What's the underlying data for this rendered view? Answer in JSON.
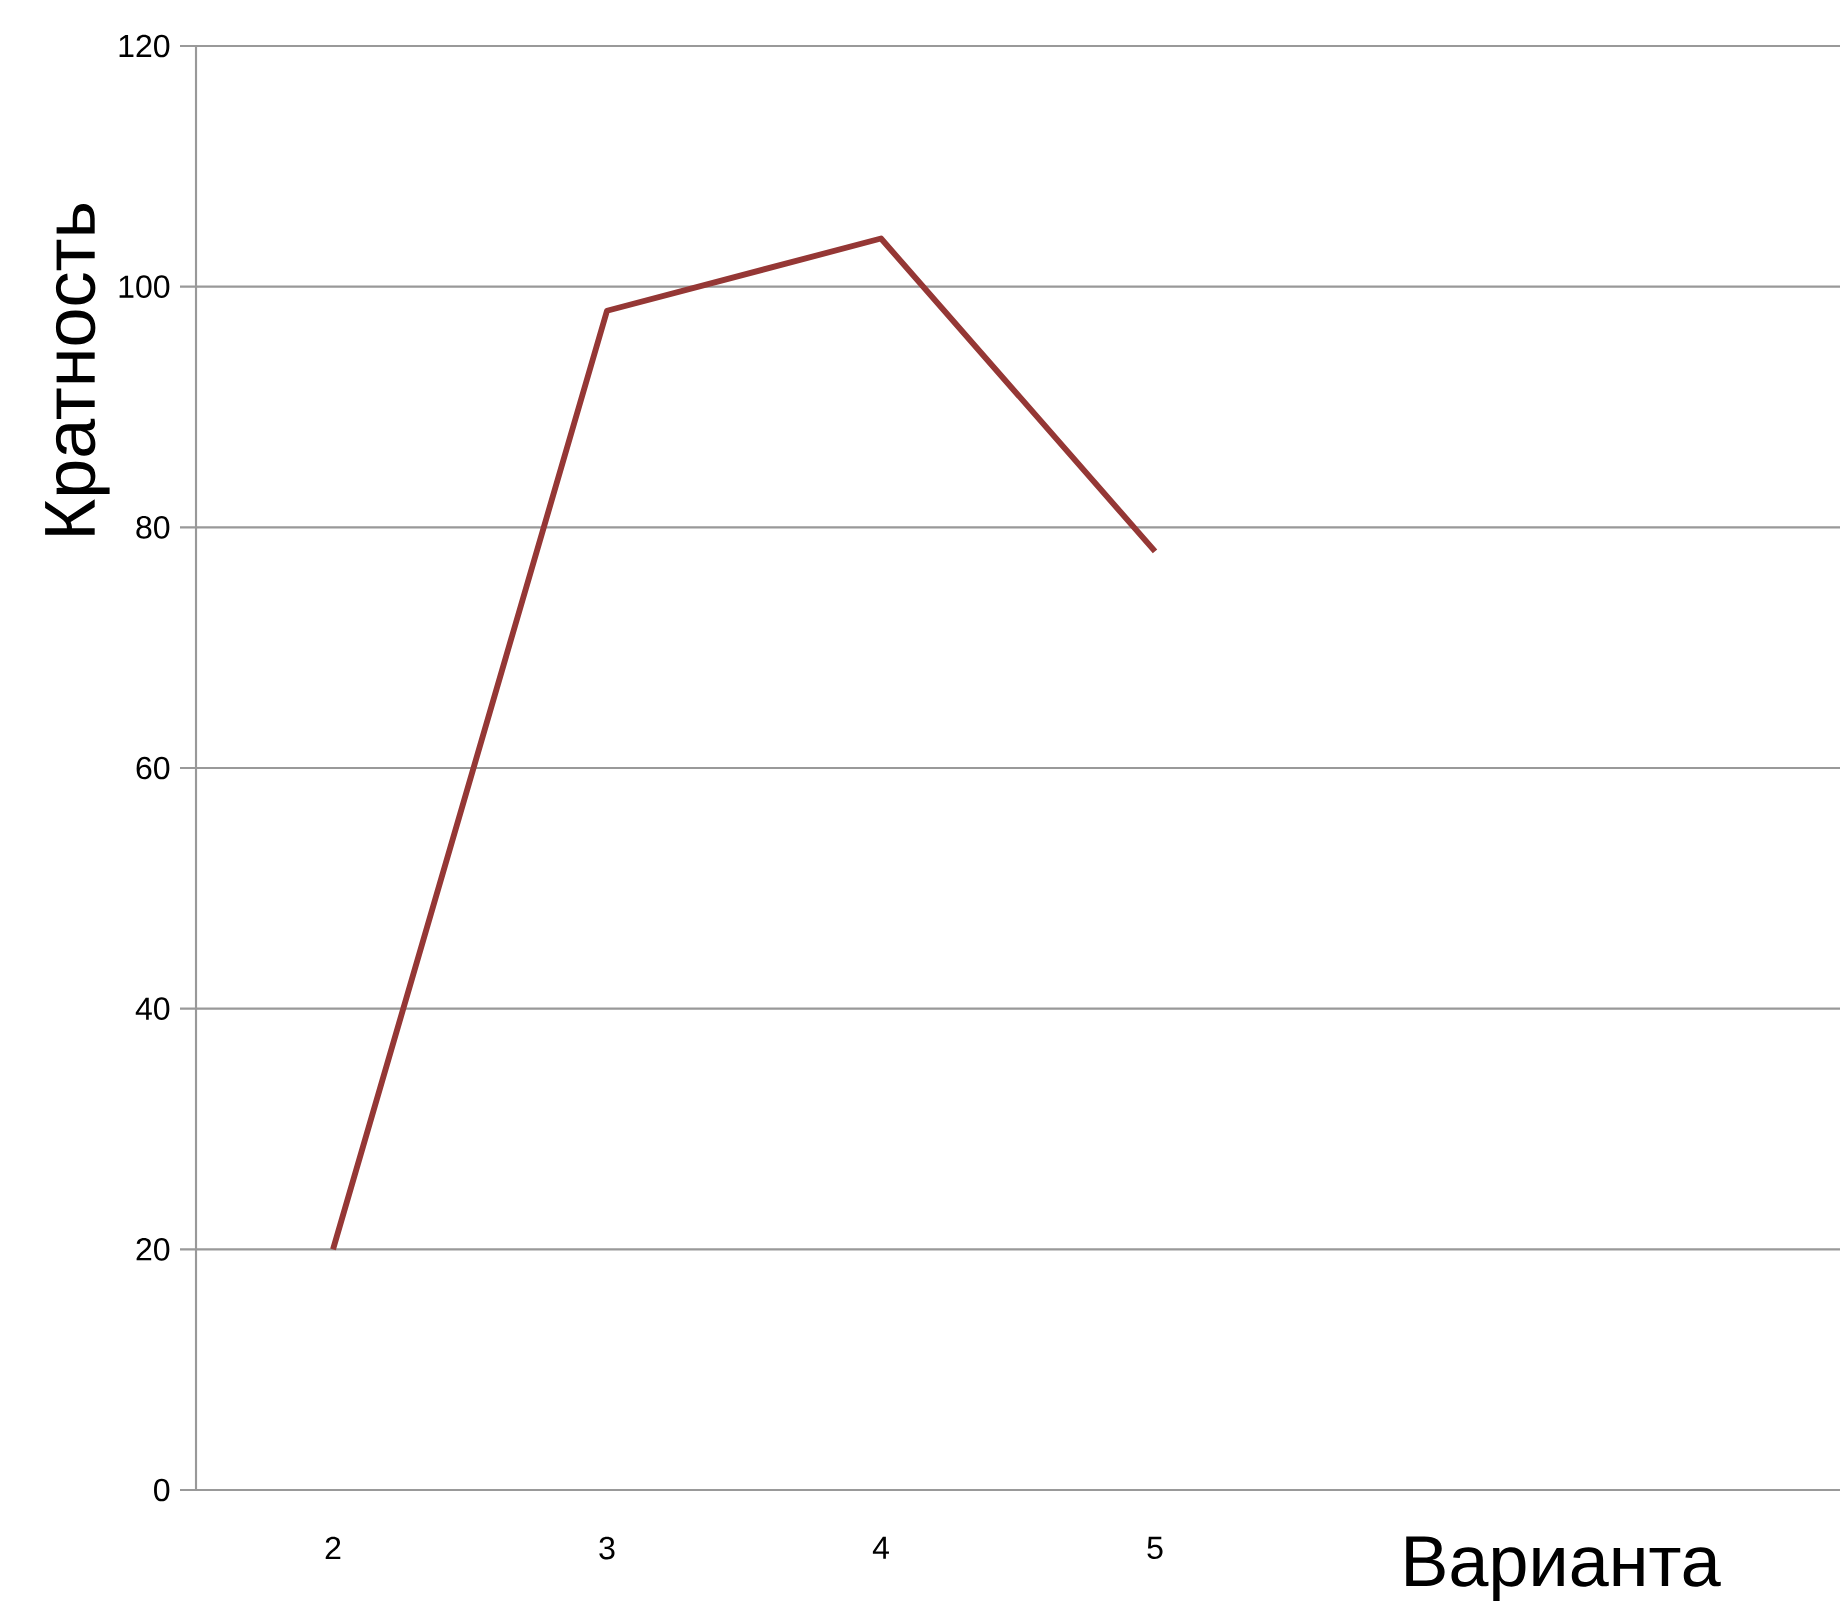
{
  "chart_data": {
    "type": "line",
    "xlabel": "Варианта",
    "ylabel": "Кратность",
    "categories": [
      "2",
      "3",
      "4",
      "5",
      null,
      null
    ],
    "series": [
      {
        "color": "#953735",
        "values": [
          20,
          98,
          104,
          78,
          null,
          null
        ]
      }
    ],
    "ylim": [
      0,
      120
    ],
    "yticks": [
      0,
      20,
      40,
      60,
      80,
      100,
      120
    ],
    "grid": "y",
    "marker": "none",
    "line_style": "solid"
  }
}
